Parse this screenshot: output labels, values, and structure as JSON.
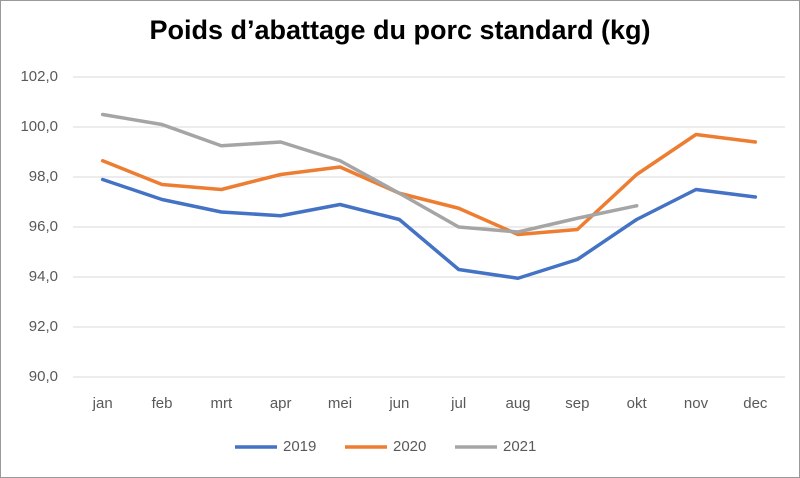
{
  "chart_data": {
    "type": "line",
    "title": "Poids d’abattage du porc standard (kg)",
    "categories": [
      "jan",
      "feb",
      "mrt",
      "apr",
      "mei",
      "jun",
      "jul",
      "aug",
      "sep",
      "okt",
      "nov",
      "dec"
    ],
    "series": [
      {
        "name": "2019",
        "color": "#4472c4",
        "values": [
          97.9,
          97.1,
          96.6,
          96.45,
          96.9,
          96.3,
          94.3,
          93.95,
          94.7,
          96.3,
          97.5,
          97.2
        ]
      },
      {
        "name": "2020",
        "color": "#ed7d31",
        "values": [
          98.65,
          97.7,
          97.5,
          98.1,
          98.4,
          97.35,
          96.75,
          95.7,
          95.9,
          98.1,
          99.7,
          99.4
        ]
      },
      {
        "name": "2021",
        "color": "#a5a5a5",
        "values": [
          100.5,
          100.1,
          99.25,
          99.4,
          98.65,
          97.35,
          96.0,
          95.8,
          96.35,
          96.85,
          null,
          null
        ]
      }
    ],
    "ylim": [
      90,
      102
    ],
    "yticks": [
      {
        "value": 90,
        "label": "90,0"
      },
      {
        "value": 92,
        "label": "92,0"
      },
      {
        "value": 94,
        "label": "94,0"
      },
      {
        "value": 96,
        "label": "96,0"
      },
      {
        "value": 98,
        "label": "98,0"
      },
      {
        "value": 100,
        "label": "100,0"
      },
      {
        "value": 102,
        "label": "102,0"
      }
    ],
    "grid": true,
    "legend": "bottom"
  }
}
